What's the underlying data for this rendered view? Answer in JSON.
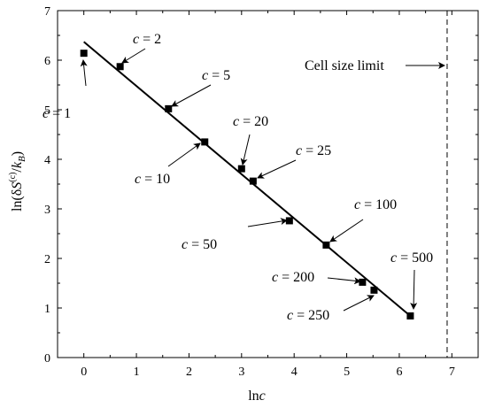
{
  "chart_data": {
    "type": "scatter",
    "xlabel": {
      "main": "ln",
      "var": "c"
    },
    "ylabel": {
      "prefix": "ln(",
      "delta": "δ",
      "S": "S",
      "sup": "(c)",
      "slash": "/",
      "k": "k",
      "sub": "B",
      "suffix": ")"
    },
    "xlim": [
      -0.5,
      7.5
    ],
    "ylim": [
      0,
      7
    ],
    "xticks": [
      0,
      1,
      2,
      3,
      4,
      5,
      6,
      7
    ],
    "yticks": [
      0,
      1,
      2,
      3,
      4,
      5,
      6,
      7
    ],
    "grid": false,
    "series": [
      {
        "marker": "square",
        "color": "#000000",
        "points": [
          {
            "c": 1,
            "x": 0.0,
            "y": 6.14
          },
          {
            "c": 2,
            "x": 0.69,
            "y": 5.87
          },
          {
            "c": 5,
            "x": 1.61,
            "y": 5.02
          },
          {
            "c": 10,
            "x": 2.3,
            "y": 4.35
          },
          {
            "c": 20,
            "x": 3.0,
            "y": 3.81
          },
          {
            "c": 25,
            "x": 3.22,
            "y": 3.56
          },
          {
            "c": 50,
            "x": 3.91,
            "y": 2.76
          },
          {
            "c": 100,
            "x": 4.61,
            "y": 2.27
          },
          {
            "c": 200,
            "x": 5.3,
            "y": 1.52
          },
          {
            "c": 250,
            "x": 5.52,
            "y": 1.36
          },
          {
            "c": 500,
            "x": 6.21,
            "y": 0.84
          }
        ]
      }
    ],
    "fit_line": {
      "x": [
        0.0,
        6.21
      ],
      "y": [
        6.37,
        0.84
      ],
      "color": "#000000"
    },
    "vline": {
      "x": 6.91,
      "style": "dashed",
      "label": "Cell size limit"
    },
    "annotations": [
      {
        "var": "c",
        "eq": " = ",
        "value": "1"
      },
      {
        "var": "c",
        "eq": " = ",
        "value": "2"
      },
      {
        "var": "c",
        "eq": " = ",
        "value": "5"
      },
      {
        "var": "c",
        "eq": " = ",
        "value": "10"
      },
      {
        "var": "c",
        "eq": " = ",
        "value": "20"
      },
      {
        "var": "c",
        "eq": " = ",
        "value": "25"
      },
      {
        "var": "c",
        "eq": " = ",
        "value": "50"
      },
      {
        "var": "c",
        "eq": " = ",
        "value": "100"
      },
      {
        "var": "c",
        "eq": " = ",
        "value": "200"
      },
      {
        "var": "c",
        "eq": " = ",
        "value": "250"
      },
      {
        "var": "c",
        "eq": " = ",
        "value": "500"
      }
    ]
  }
}
